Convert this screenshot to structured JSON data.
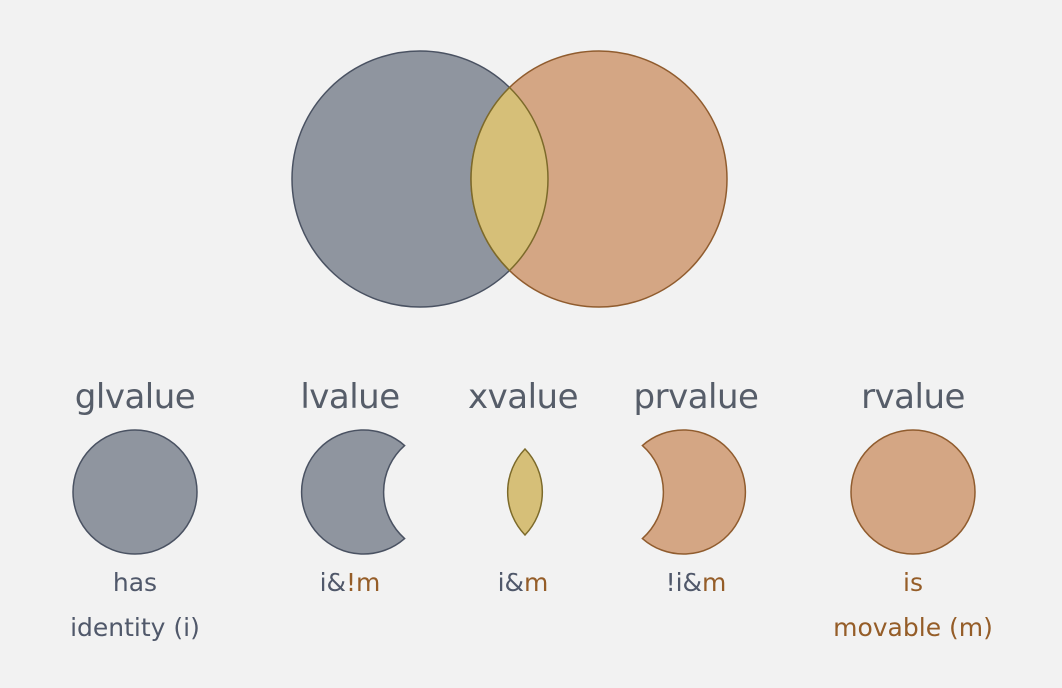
{
  "colors": {
    "background": "#f2f2f2",
    "identity_fill": "#8f959f",
    "identity_stroke": "#4a5262",
    "movable_fill": "#d4a684",
    "movable_stroke": "#905c2e",
    "overlap_fill": "#d6bf78",
    "overlap_stroke": "#7c6a2a",
    "text_gray": "#50586a",
    "text_brown": "#955d28"
  },
  "categories": [
    {
      "id": "glvalue",
      "name": "glvalue",
      "icon": "full-gray-circle-icon",
      "desc": [
        [
          {
            "t": "has",
            "c": "gray"
          }
        ],
        [
          {
            "t": "identity (i)",
            "c": "gray"
          }
        ]
      ]
    },
    {
      "id": "lvalue",
      "name": "lvalue",
      "icon": "crescent-gray-icon",
      "desc": [
        [
          {
            "t": "i&",
            "c": "gray"
          },
          {
            "t": "!m",
            "c": "brown"
          }
        ]
      ]
    },
    {
      "id": "xvalue",
      "name": "xvalue",
      "icon": "lens-icon",
      "desc": [
        [
          {
            "t": "i&",
            "c": "gray"
          },
          {
            "t": "m",
            "c": "brown"
          }
        ]
      ]
    },
    {
      "id": "prvalue",
      "name": "prvalue",
      "icon": "crescent-orange-icon",
      "desc": [
        [
          {
            "t": "!i&",
            "c": "gray"
          },
          {
            "t": "m",
            "c": "brown"
          }
        ]
      ]
    },
    {
      "id": "rvalue",
      "name": "rvalue",
      "icon": "full-orange-circle-icon",
      "desc": [
        [
          {
            "t": "is",
            "c": "brown"
          }
        ],
        [
          {
            "t": "movable (m)",
            "c": "brown"
          }
        ]
      ]
    }
  ]
}
